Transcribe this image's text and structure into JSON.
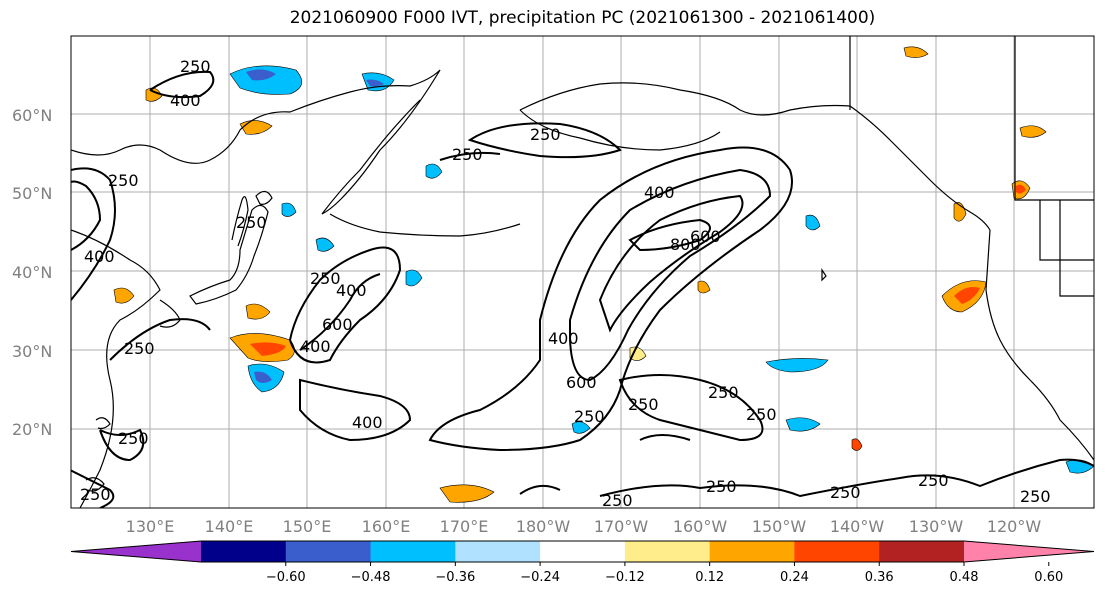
{
  "title": "2021060900 F000 IVT, precipitation PC (2021061300 - 2021061400)",
  "map": {
    "lat_labels": [
      "60°N",
      "50°N",
      "40°N",
      "30°N",
      "20°N"
    ],
    "lon_labels": [
      "130°E",
      "140°E",
      "150°E",
      "160°E",
      "170°E",
      "180°W",
      "170°W",
      "160°W",
      "150°W",
      "140°W",
      "130°W",
      "120°W"
    ],
    "ivt_contour_levels": [
      "250",
      "400",
      "600",
      "800"
    ],
    "contour_labels": [
      "250",
      "400",
      "250",
      "250",
      "400",
      "250",
      "400",
      "250",
      "400",
      "600",
      "400",
      "250",
      "250",
      "400",
      "600",
      "800",
      "600",
      "400",
      "250",
      "250",
      "250",
      "250",
      "250",
      "250",
      "250",
      "250",
      "250",
      "250",
      "250"
    ],
    "colors": {
      "land_outline": "#000000",
      "gridline": "#999999",
      "contour": "#000000"
    }
  },
  "colorbar": {
    "tick_labels": [
      "−0.60",
      "−0.48",
      "−0.36",
      "−0.24",
      "−0.12",
      "0.12",
      "0.24",
      "0.36",
      "0.48",
      "0.60"
    ],
    "bins": [
      {
        "color": "#9932CC"
      },
      {
        "color": "#00008B"
      },
      {
        "color": "#3A5FCD"
      },
      {
        "color": "#00BFFF"
      },
      {
        "color": "#B0E2FF"
      },
      {
        "color": "#FFFFFF"
      },
      {
        "color": "#FFEC8B"
      },
      {
        "color": "#FFA500"
      },
      {
        "color": "#FF4500"
      },
      {
        "color": "#B22222"
      },
      {
        "color": "#FF82AB"
      }
    ]
  }
}
